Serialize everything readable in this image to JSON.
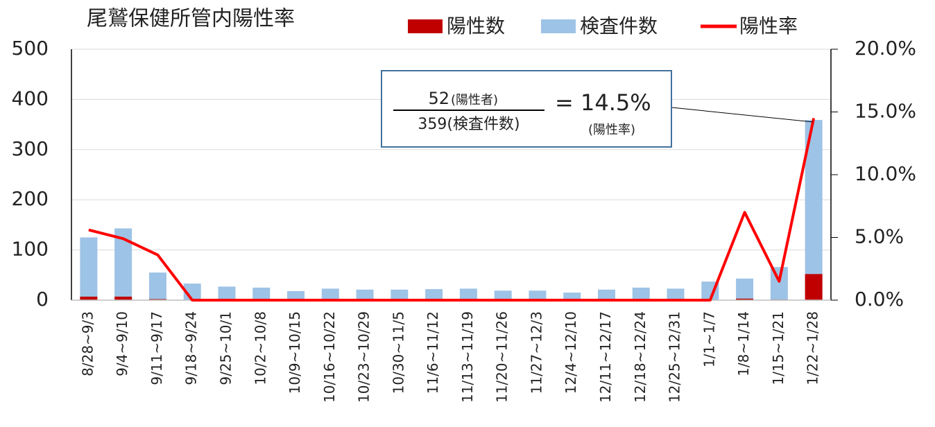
{
  "chart_data": {
    "type": "bar-line",
    "title": "尾鷲保健所管内陽性率",
    "categories": [
      "8/28~9/3",
      "9/4~9/10",
      "9/11~9/17",
      "9/18~9/24",
      "9/25~10/1",
      "10/2~10/8",
      "10/9~10/15",
      "10/16~10/22",
      "10/23~10/29",
      "10/30~11/5",
      "11/6~11/12",
      "11/13~11/19",
      "11/20~11/26",
      "11/27~12/3",
      "12/4~12/10",
      "12/11~12/17",
      "12/18~12/24",
      "12/25~12/31",
      "1/1~1/7",
      "1/8~1/14",
      "1/15~1/21",
      "1/22~1/28"
    ],
    "series": [
      {
        "name": "陽性数",
        "color": "#c00000",
        "type": "bar",
        "values": [
          7,
          7,
          2,
          0,
          0,
          0,
          0,
          0,
          0,
          0,
          0,
          0,
          0,
          0,
          0,
          0,
          0,
          0,
          0,
          3,
          1,
          52
        ]
      },
      {
        "name": "検査件数",
        "color": "#9dc3e6",
        "type": "bar",
        "values": [
          125,
          143,
          55,
          33,
          27,
          25,
          18,
          23,
          21,
          21,
          22,
          23,
          19,
          19,
          15,
          21,
          25,
          23,
          37,
          43,
          66,
          359
        ]
      },
      {
        "name": "陽性率",
        "color": "#ff0000",
        "type": "line",
        "axis": "y2",
        "values": [
          5.6,
          4.9,
          3.6,
          0,
          0,
          0,
          0,
          0,
          0,
          0,
          0,
          0,
          0,
          0,
          0,
          0,
          0,
          0,
          0,
          7.0,
          1.5,
          14.5
        ]
      }
    ],
    "ylim": [
      0,
      500
    ],
    "yticks": [
      0,
      100,
      200,
      300,
      400,
      500
    ],
    "y2lim": [
      0,
      20
    ],
    "y2ticks": [
      {
        "value": 0,
        "label": "0.0%"
      },
      {
        "value": 5,
        "label": "5.0%"
      },
      {
        "value": 10,
        "label": "10.0%"
      },
      {
        "value": 15,
        "label": "15.0%"
      },
      {
        "value": 20,
        "label": "20.0%"
      }
    ],
    "grid": true,
    "annotation": {
      "numerator": "52",
      "numerator_note": "(陽性者)",
      "denominator": "359(検査件数)",
      "result": "= 14.5%",
      "result_note": "(陽性率)"
    }
  }
}
